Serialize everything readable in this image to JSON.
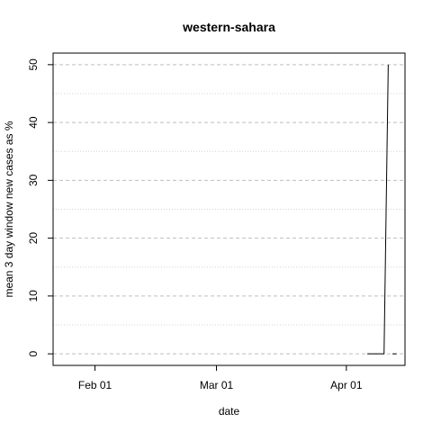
{
  "chart_data": {
    "type": "line",
    "title": "western-sahara",
    "xlabel": "date",
    "ylabel": "mean  3  day window new cases as %",
    "x_tick_labels": [
      "Feb 01",
      "Mar 01",
      "Apr 01"
    ],
    "x_tick_dates": [
      "2020-02-01",
      "2020-03-01",
      "2020-04-01"
    ],
    "xlim": [
      "2020-01-22",
      "2020-04-15"
    ],
    "y_ticks": [
      0,
      10,
      20,
      30,
      40,
      50
    ],
    "y_minor_ticks": [
      5,
      15,
      25,
      35,
      45
    ],
    "ylim": [
      -2,
      52
    ],
    "grid": true,
    "series": [
      {
        "segments": [
          {
            "x": [
              "2020-04-06",
              "2020-04-07",
              "2020-04-08",
              "2020-04-09",
              "2020-04-10",
              "2020-04-11"
            ],
            "y": [
              0,
              0,
              0,
              0,
              0,
              50
            ]
          },
          {
            "x": [
              "2020-04-12",
              "2020-04-13"
            ],
            "y": [
              0,
              0
            ]
          }
        ]
      }
    ]
  }
}
